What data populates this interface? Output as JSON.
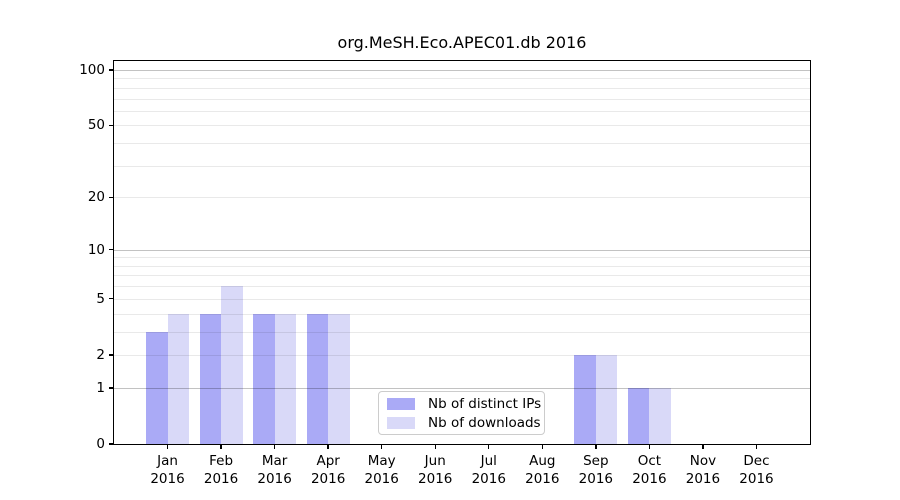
{
  "title": "org.MeSH.Eco.APEC01.db 2016",
  "chart_data": {
    "type": "bar",
    "title": "org.MeSH.Eco.APEC01.db 2016",
    "xlabel": "",
    "ylabel": "",
    "year": "2016",
    "categories": [
      "Jan",
      "Feb",
      "Mar",
      "Apr",
      "May",
      "Jun",
      "Jul",
      "Aug",
      "Sep",
      "Oct",
      "Nov",
      "Dec"
    ],
    "series": [
      {
        "name": "Nb of distinct IPs",
        "color": "#aaaaf6",
        "values": [
          3,
          4,
          4,
          4,
          0,
          0,
          0,
          0,
          2,
          1,
          0,
          0
        ]
      },
      {
        "name": "Nb of downloads",
        "color": "#d9d9f8",
        "values": [
          4,
          6,
          4,
          4,
          0,
          0,
          0,
          0,
          2,
          1,
          0,
          0
        ]
      }
    ],
    "y_scale": "log1p",
    "ylim": [
      0,
      100
    ],
    "y_ticks": [
      0,
      1,
      2,
      5,
      10,
      20,
      50,
      100
    ],
    "major_gridlines": [
      1,
      10,
      100
    ],
    "minor_gridlines": [
      2,
      3,
      4,
      5,
      6,
      7,
      8,
      9,
      20,
      30,
      40,
      50,
      60,
      70,
      80,
      90
    ],
    "grid": "horizontal, drawn over bars",
    "legend_position": "inside lower-center"
  }
}
